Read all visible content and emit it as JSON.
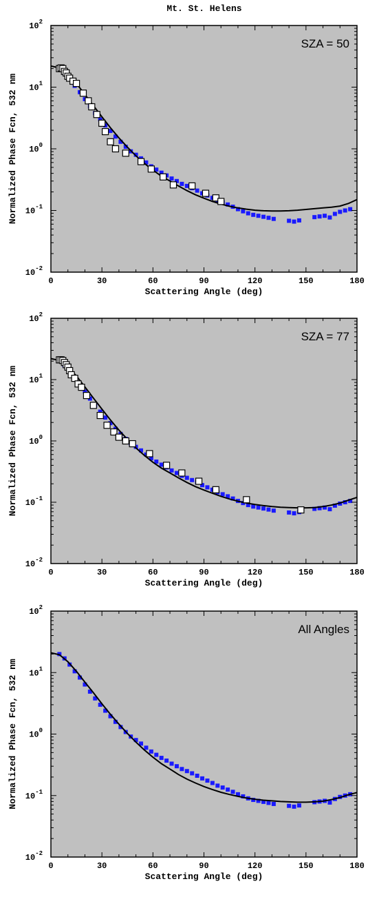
{
  "figure_title": "Mt. St. Helens",
  "colors": {
    "plot_bg": "#c0c0c0",
    "measured": "#1a1aff",
    "model": "#000000",
    "marker_fill": "#ffffff"
  },
  "chart_data": [
    {
      "type": "scatter",
      "annotation": "SZA = 50",
      "xlabel": "Scattering Angle (deg)",
      "ylabel": "Normalized Phase Fcn, 532 nm",
      "xlim": [
        0,
        180
      ],
      "ylim": [
        0.01,
        100
      ],
      "yscale": "log",
      "x_ticks": [
        "0",
        "30",
        "60",
        "90",
        "120",
        "150",
        "180"
      ],
      "y_ticks": [
        {
          "base": "10",
          "exp": "-2"
        },
        {
          "base": "10",
          "exp": "-1"
        },
        {
          "base": "10",
          "exp": "0"
        },
        {
          "base": "10",
          "exp": "1"
        },
        {
          "base": "10",
          "exp": "2"
        }
      ],
      "series": [
        {
          "role": "measured",
          "x": [
            5,
            8,
            11,
            14,
            17,
            20,
            23,
            26,
            29,
            32,
            35,
            38,
            41,
            44,
            47,
            50,
            53,
            56,
            59,
            62,
            65,
            68,
            71,
            74,
            77,
            80,
            83,
            86,
            89,
            92,
            95,
            98,
            101,
            104,
            107,
            110,
            113,
            116,
            119,
            122,
            125,
            128,
            131,
            140,
            143,
            146,
            155,
            158,
            161,
            164,
            167,
            170,
            173,
            176
          ],
          "y": [
            20,
            17,
            13.5,
            10.5,
            8.3,
            6.4,
            4.9,
            3.8,
            3.0,
            2.4,
            1.95,
            1.58,
            1.3,
            1.08,
            0.91,
            0.8,
            0.7,
            0.6,
            0.52,
            0.46,
            0.41,
            0.37,
            0.33,
            0.3,
            0.27,
            0.25,
            0.23,
            0.21,
            0.19,
            0.175,
            0.16,
            0.145,
            0.135,
            0.125,
            0.115,
            0.105,
            0.097,
            0.09,
            0.085,
            0.082,
            0.079,
            0.076,
            0.073,
            0.068,
            0.066,
            0.069,
            0.078,
            0.08,
            0.082,
            0.077,
            0.088,
            0.095,
            0.1,
            0.105
          ]
        },
        {
          "role": "model",
          "x": [
            0,
            5,
            10,
            15,
            20,
            25,
            30,
            35,
            40,
            45,
            50,
            55,
            60,
            65,
            70,
            75,
            80,
            85,
            90,
            95,
            100,
            105,
            110,
            115,
            120,
            125,
            130,
            135,
            140,
            145,
            150,
            155,
            160,
            165,
            170,
            175,
            180
          ],
          "y": [
            22,
            20.5,
            16,
            11.5,
            7.6,
            5,
            3.3,
            2.2,
            1.5,
            1.06,
            0.77,
            0.58,
            0.45,
            0.36,
            0.3,
            0.25,
            0.21,
            0.18,
            0.158,
            0.14,
            0.127,
            0.117,
            0.11,
            0.105,
            0.101,
            0.099,
            0.098,
            0.098,
            0.099,
            0.101,
            0.104,
            0.107,
            0.11,
            0.113,
            0.118,
            0.13,
            0.15
          ]
        },
        {
          "role": "selected",
          "x": [
            5,
            6,
            7,
            8,
            9,
            10,
            11,
            13,
            15,
            19,
            22,
            24,
            27,
            30,
            32,
            35,
            38,
            44,
            53,
            59,
            66,
            72,
            83,
            91,
            97,
            100
          ],
          "y": [
            20,
            20.5,
            20,
            18,
            17,
            15,
            14,
            12.5,
            11.5,
            8,
            6,
            4.8,
            3.6,
            2.6,
            1.9,
            1.3,
            1.0,
            0.85,
            0.62,
            0.47,
            0.35,
            0.26,
            0.25,
            0.19,
            0.16,
            0.14
          ]
        }
      ]
    },
    {
      "type": "scatter",
      "annotation": "SZA = 77",
      "xlabel": "Scattering Angle (deg)",
      "ylabel": "Normalized Phase Fcn, 532 nm",
      "xlim": [
        0,
        180
      ],
      "ylim": [
        0.01,
        100
      ],
      "yscale": "log",
      "x_ticks": [
        "0",
        "30",
        "60",
        "90",
        "120",
        "150",
        "180"
      ],
      "y_ticks": [
        {
          "base": "10",
          "exp": "-2"
        },
        {
          "base": "10",
          "exp": "-1"
        },
        {
          "base": "10",
          "exp": "0"
        },
        {
          "base": "10",
          "exp": "1"
        },
        {
          "base": "10",
          "exp": "2"
        }
      ],
      "series": [
        {
          "role": "measured",
          "x": [
            5,
            8,
            11,
            14,
            17,
            20,
            23,
            26,
            29,
            32,
            35,
            38,
            41,
            44,
            47,
            50,
            53,
            56,
            59,
            62,
            65,
            68,
            71,
            74,
            77,
            80,
            83,
            86,
            89,
            92,
            95,
            98,
            101,
            104,
            107,
            110,
            113,
            116,
            119,
            122,
            125,
            128,
            131,
            140,
            143,
            146,
            155,
            158,
            161,
            164,
            167,
            170,
            173,
            176
          ],
          "y": [
            20,
            17,
            13.5,
            10.5,
            8.3,
            6.4,
            4.9,
            3.8,
            3.0,
            2.4,
            1.95,
            1.58,
            1.3,
            1.08,
            0.91,
            0.8,
            0.7,
            0.6,
            0.52,
            0.46,
            0.41,
            0.37,
            0.33,
            0.3,
            0.27,
            0.25,
            0.23,
            0.21,
            0.19,
            0.175,
            0.16,
            0.145,
            0.135,
            0.125,
            0.115,
            0.105,
            0.097,
            0.09,
            0.085,
            0.082,
            0.079,
            0.076,
            0.073,
            0.068,
            0.066,
            0.069,
            0.078,
            0.08,
            0.082,
            0.077,
            0.088,
            0.095,
            0.1,
            0.105
          ]
        },
        {
          "role": "model",
          "x": [
            0,
            5,
            10,
            15,
            20,
            25,
            30,
            35,
            40,
            45,
            50,
            55,
            60,
            65,
            70,
            75,
            80,
            85,
            90,
            95,
            100,
            105,
            110,
            115,
            120,
            125,
            130,
            135,
            140,
            145,
            150,
            155,
            160,
            165,
            170,
            175,
            180
          ],
          "y": [
            22,
            20.5,
            16,
            11.5,
            7.6,
            5,
            3.3,
            2.2,
            1.5,
            1.06,
            0.77,
            0.58,
            0.45,
            0.36,
            0.3,
            0.25,
            0.21,
            0.18,
            0.158,
            0.14,
            0.125,
            0.113,
            0.104,
            0.097,
            0.092,
            0.088,
            0.085,
            0.083,
            0.082,
            0.081,
            0.081,
            0.082,
            0.085,
            0.09,
            0.097,
            0.108,
            0.12
          ]
        },
        {
          "role": "selected",
          "x": [
            5,
            6,
            7,
            8,
            9,
            10,
            11,
            12,
            14,
            16,
            18,
            21,
            25,
            29,
            33,
            37,
            40,
            44,
            48,
            58,
            68,
            77,
            87,
            97,
            115,
            147
          ],
          "y": [
            21,
            21,
            20.5,
            19,
            17.5,
            16,
            14,
            12,
            10.5,
            8.5,
            7.5,
            5.5,
            3.8,
            2.6,
            1.8,
            1.4,
            1.15,
            1.0,
            0.9,
            0.62,
            0.4,
            0.3,
            0.22,
            0.16,
            0.11,
            0.075
          ]
        }
      ]
    },
    {
      "type": "line",
      "annotation": "All Angles",
      "xlabel": "Scattering Angle (deg)",
      "ylabel": "Normalized Phase Fcn, 532 nm",
      "xlim": [
        0,
        180
      ],
      "ylim": [
        0.01,
        100
      ],
      "yscale": "log",
      "x_ticks": [
        "0",
        "30",
        "60",
        "90",
        "120",
        "150",
        "180"
      ],
      "y_ticks": [
        {
          "base": "10",
          "exp": "-2"
        },
        {
          "base": "10",
          "exp": "-1"
        },
        {
          "base": "10",
          "exp": "0"
        },
        {
          "base": "10",
          "exp": "1"
        },
        {
          "base": "10",
          "exp": "2"
        }
      ],
      "series": [
        {
          "role": "measured",
          "x": [
            5,
            8,
            11,
            14,
            17,
            20,
            23,
            26,
            29,
            32,
            35,
            38,
            41,
            44,
            47,
            50,
            53,
            56,
            59,
            62,
            65,
            68,
            71,
            74,
            77,
            80,
            83,
            86,
            89,
            92,
            95,
            98,
            101,
            104,
            107,
            110,
            113,
            116,
            119,
            122,
            125,
            128,
            131,
            140,
            143,
            146,
            155,
            158,
            161,
            164,
            167,
            170,
            173,
            176
          ],
          "y": [
            20,
            17,
            13.5,
            10.5,
            8.3,
            6.4,
            4.9,
            3.8,
            3.0,
            2.4,
            1.95,
            1.58,
            1.3,
            1.08,
            0.91,
            0.8,
            0.7,
            0.6,
            0.52,
            0.46,
            0.41,
            0.37,
            0.33,
            0.3,
            0.27,
            0.25,
            0.23,
            0.21,
            0.19,
            0.175,
            0.16,
            0.145,
            0.135,
            0.125,
            0.115,
            0.105,
            0.097,
            0.09,
            0.085,
            0.082,
            0.079,
            0.076,
            0.073,
            0.068,
            0.066,
            0.069,
            0.078,
            0.08,
            0.082,
            0.077,
            0.088,
            0.095,
            0.1,
            0.105
          ]
        },
        {
          "role": "model",
          "x": [
            0,
            5,
            10,
            15,
            20,
            25,
            30,
            35,
            40,
            45,
            50,
            55,
            60,
            65,
            70,
            75,
            80,
            85,
            90,
            95,
            100,
            105,
            110,
            115,
            120,
            125,
            130,
            135,
            140,
            145,
            150,
            155,
            160,
            165,
            170,
            175,
            180
          ],
          "y": [
            21,
            19.5,
            15,
            10.5,
            7,
            4.7,
            3.1,
            2.1,
            1.45,
            1.02,
            0.74,
            0.55,
            0.42,
            0.33,
            0.27,
            0.22,
            0.185,
            0.16,
            0.14,
            0.125,
            0.113,
            0.104,
            0.097,
            0.091,
            0.087,
            0.084,
            0.082,
            0.08,
            0.079,
            0.078,
            0.078,
            0.079,
            0.081,
            0.086,
            0.093,
            0.103,
            0.112
          ]
        }
      ]
    }
  ]
}
